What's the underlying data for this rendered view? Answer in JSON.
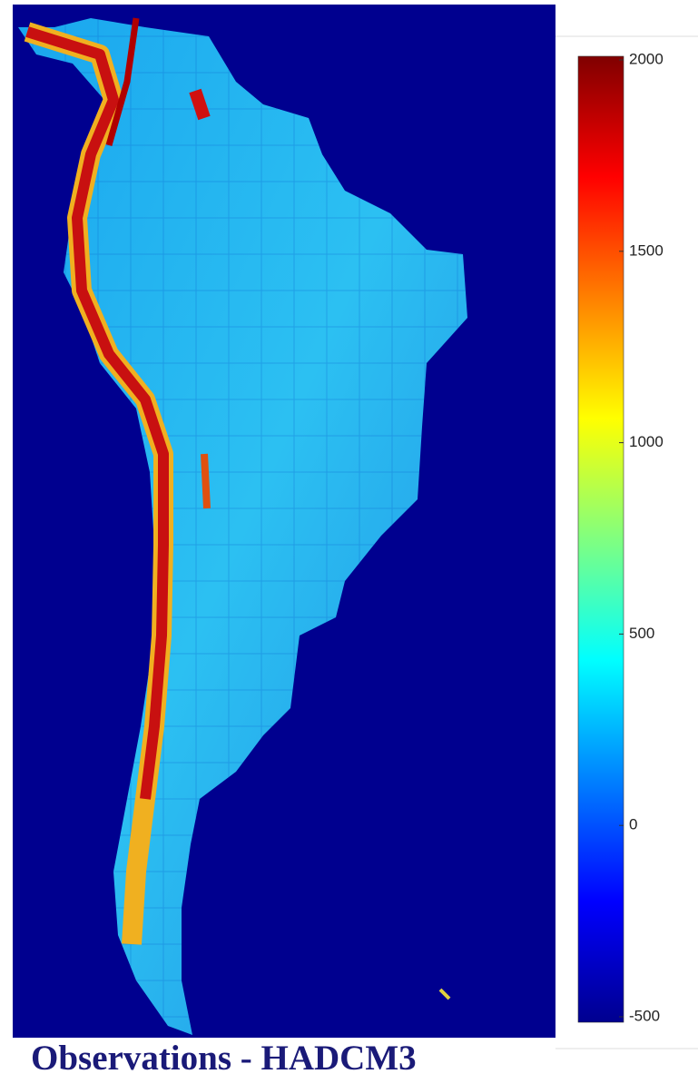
{
  "map": {
    "caption": "Observations - HADCM3"
  },
  "colorbar": {
    "range": [
      -500,
      2000
    ],
    "ticks": [
      -500,
      0,
      500,
      1000,
      1500,
      2000
    ],
    "colormap": "jet"
  }
}
